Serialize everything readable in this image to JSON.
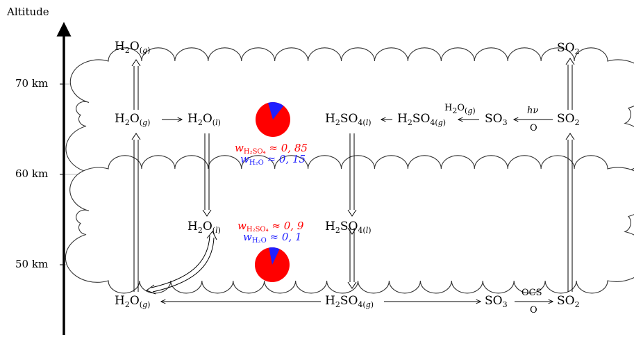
{
  "axis": {
    "title": "Altitude",
    "ticks": [
      {
        "label": "70 km",
        "value": 70
      },
      {
        "label": "60 km",
        "value": 60
      },
      {
        "label": "50 km",
        "value": 50
      }
    ]
  },
  "species": {
    "h2o_top": {
      "base": "H",
      "sub1": "2",
      "rest": "O",
      "phase": "g"
    },
    "h2o_g_upper": {
      "base": "H",
      "sub1": "2",
      "rest": "O",
      "phase": "g"
    },
    "h2o_l_upper": {
      "base": "H",
      "sub1": "2",
      "rest": "O",
      "phase": "l"
    },
    "h2so4_l_upper": {
      "base": "H",
      "sub1": "2",
      "rest": "SO",
      "sub2": "4",
      "phase": "l"
    },
    "h2so4_g_upper": {
      "base": "H",
      "sub1": "2",
      "rest": "SO",
      "sub2": "4",
      "phase": "g"
    },
    "so3_upper": {
      "base": "SO",
      "sub1": "3"
    },
    "so2_upper": {
      "base": "SO",
      "sub1": "2"
    },
    "so2_top": {
      "base": "SO",
      "sub1": "2"
    },
    "h2o_l_lower": {
      "base": "H",
      "sub1": "2",
      "rest": "O",
      "phase": "l"
    },
    "h2so4_l_lower": {
      "base": "H",
      "sub1": "2",
      "rest": "SO",
      "sub2": "4",
      "phase": "l"
    },
    "h2o_g_bottom": {
      "base": "H",
      "sub1": "2",
      "rest": "O",
      "phase": "g"
    },
    "h2so4_g_bottom": {
      "base": "H",
      "sub1": "2",
      "rest": "SO",
      "sub2": "4",
      "phase": "g"
    },
    "so3_bottom": {
      "base": "SO",
      "sub1": "3"
    },
    "so2_bottom": {
      "base": "SO",
      "sub1": "2"
    }
  },
  "reaction_labels": {
    "h2o_over_arrow": {
      "base": "H",
      "sub1": "2",
      "rest": "O",
      "phase": "g"
    },
    "hnu": "hν",
    "o_under_upper": "O",
    "ocs_over_arrow": "OCS",
    "o_under_lower": "O"
  },
  "weights": {
    "upper": {
      "sulfuric": {
        "symbol": "w",
        "subscript": "H₂SO₄",
        "value": "≈ 0, 85"
      },
      "water": {
        "symbol": "w",
        "subscript": "H₂O",
        "value": "≈ 0, 15"
      },
      "fraction_sulfuric": 0.85
    },
    "lower": {
      "sulfuric": {
        "symbol": "w",
        "subscript": "H₂SO₄",
        "value": "≈ 0, 9"
      },
      "water": {
        "symbol": "w",
        "subscript": "H₂O",
        "value": "≈ 0, 1"
      },
      "fraction_sulfuric": 0.9
    }
  },
  "colors": {
    "sulfuric": "#ff0000",
    "water": "#1f1fff",
    "grid": "#bbbbbb",
    "cloud_stroke": "#333333",
    "axis": "#000000"
  }
}
